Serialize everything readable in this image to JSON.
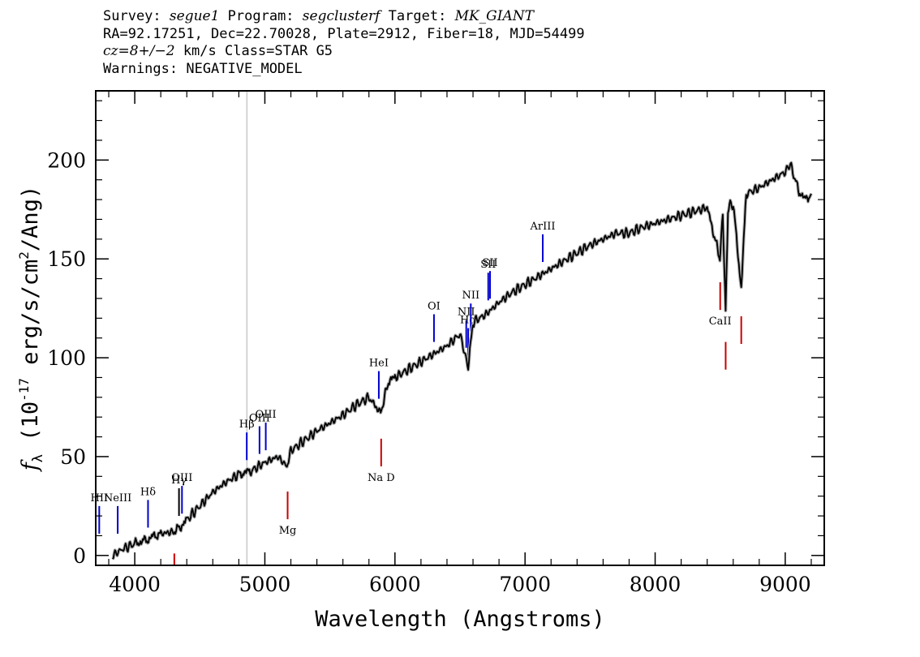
{
  "header": {
    "line1": {
      "survey_label": "Survey:",
      "survey": "segue1",
      "program_label": "Program:",
      "program": "segclusterf",
      "target_label": "Target:",
      "target": "MK_GIANT"
    },
    "line2": "RA=92.17251, Dec=22.70028, Plate=2912, Fiber=18, MJD=54499",
    "line3": {
      "cz": "cz=8+/−2",
      "rest": " km/s Class=STAR G5"
    },
    "line4": "Warnings: NEGATIVE_MODEL"
  },
  "chart_data": {
    "type": "line",
    "xlabel": "Wavelength (Angstroms)",
    "ylabel": "f_λ (10^-17 erg/s/cm^2/Ang)",
    "xlim": [
      3700,
      9300
    ],
    "ylim": [
      -5,
      235
    ],
    "x_ticks": [
      4000,
      5000,
      6000,
      7000,
      8000,
      9000
    ],
    "y_ticks": [
      0,
      50,
      100,
      150,
      200
    ],
    "grid": false,
    "marker_line_x": 4862,
    "series": [
      {
        "points": [
          [
            3830,
            0
          ],
          [
            3900,
            3
          ],
          [
            4000,
            6
          ],
          [
            4050,
            7
          ],
          [
            4100,
            8
          ],
          [
            4150,
            10
          ],
          [
            4200,
            11
          ],
          [
            4300,
            12
          ],
          [
            4380,
            16
          ],
          [
            4400,
            18
          ],
          [
            4500,
            25
          ],
          [
            4600,
            32
          ],
          [
            4700,
            37
          ],
          [
            4800,
            41
          ],
          [
            4850,
            42
          ],
          [
            4900,
            43
          ],
          [
            5000,
            47
          ],
          [
            5100,
            50
          ],
          [
            5170,
            45
          ],
          [
            5200,
            53
          ],
          [
            5300,
            58
          ],
          [
            5400,
            63
          ],
          [
            5500,
            67
          ],
          [
            5600,
            71
          ],
          [
            5700,
            76
          ],
          [
            5800,
            80
          ],
          [
            5890,
            72
          ],
          [
            5950,
            88
          ],
          [
            6000,
            90
          ],
          [
            6100,
            94
          ],
          [
            6200,
            98
          ],
          [
            6300,
            102
          ],
          [
            6400,
            106
          ],
          [
            6500,
            112
          ],
          [
            6563,
            95
          ],
          [
            6600,
            118
          ],
          [
            6700,
            122
          ],
          [
            6800,
            128
          ],
          [
            6900,
            133
          ],
          [
            7000,
            137
          ],
          [
            7100,
            141
          ],
          [
            7200,
            145
          ],
          [
            7300,
            149
          ],
          [
            7400,
            153
          ],
          [
            7500,
            157
          ],
          [
            7600,
            160
          ],
          [
            7700,
            163
          ],
          [
            7800,
            163
          ],
          [
            7900,
            166
          ],
          [
            8000,
            168
          ],
          [
            8100,
            170
          ],
          [
            8200,
            172
          ],
          [
            8300,
            174
          ],
          [
            8400,
            176
          ],
          [
            8498,
            150
          ],
          [
            8520,
            174
          ],
          [
            8542,
            122
          ],
          [
            8560,
            176
          ],
          [
            8600,
            178
          ],
          [
            8662,
            135
          ],
          [
            8700,
            183
          ],
          [
            8800,
            186
          ],
          [
            8900,
            190
          ],
          [
            9000,
            194
          ],
          [
            9040,
            198
          ],
          [
            9100,
            185
          ],
          [
            9150,
            180
          ],
          [
            9200,
            183
          ]
        ],
        "color": "#000000"
      }
    ],
    "emission_lines": [
      {
        "label": "HII",
        "x": 3727,
        "color": "#0000cc"
      },
      {
        "label": "NeIII",
        "x": 3869,
        "color": "#0000cc"
      },
      {
        "label": "Hδ",
        "x": 4102,
        "color": "#0000cc"
      },
      {
        "label": "Hγ",
        "x": 4340,
        "color": "#000000"
      },
      {
        "label": "OIII",
        "x": 4363,
        "color": "#0000cc"
      },
      {
        "label": "Hβ",
        "x": 4861,
        "color": "#0000cc"
      },
      {
        "label": "OIII",
        "x": 4959,
        "color": "#0000cc"
      },
      {
        "label": "OIII",
        "x": 5007,
        "color": "#0000cc"
      },
      {
        "label": "HeI",
        "x": 5876,
        "color": "#0000cc"
      },
      {
        "label": "OI",
        "x": 6300,
        "color": "#0000cc"
      },
      {
        "label": "NII",
        "x": 6548,
        "color": "#0000cc"
      },
      {
        "label": "Hα",
        "x": 6563,
        "color": "#0000cc"
      },
      {
        "label": "NII",
        "x": 6583,
        "color": "#0000cc"
      },
      {
        "label": "SII",
        "x": 6717,
        "color": "#0000cc"
      },
      {
        "label": "SII",
        "x": 6731,
        "color": "#0000cc"
      },
      {
        "label": "ArIII",
        "x": 7136,
        "color": "#0000cc"
      }
    ],
    "absorption_lines": [
      {
        "label": "",
        "x": 4304,
        "color": "#cc0000"
      },
      {
        "label": "Mg",
        "x": 5175,
        "color": "#cc0000"
      },
      {
        "label": "Na D",
        "x": 5894,
        "color": "#cc0000"
      },
      {
        "label": "CaII",
        "x": 8500,
        "color": "#cc0000"
      },
      {
        "label": "",
        "x": 8542,
        "color": "#cc0000"
      },
      {
        "label": "",
        "x": 8662,
        "color": "#cc0000"
      }
    ]
  }
}
